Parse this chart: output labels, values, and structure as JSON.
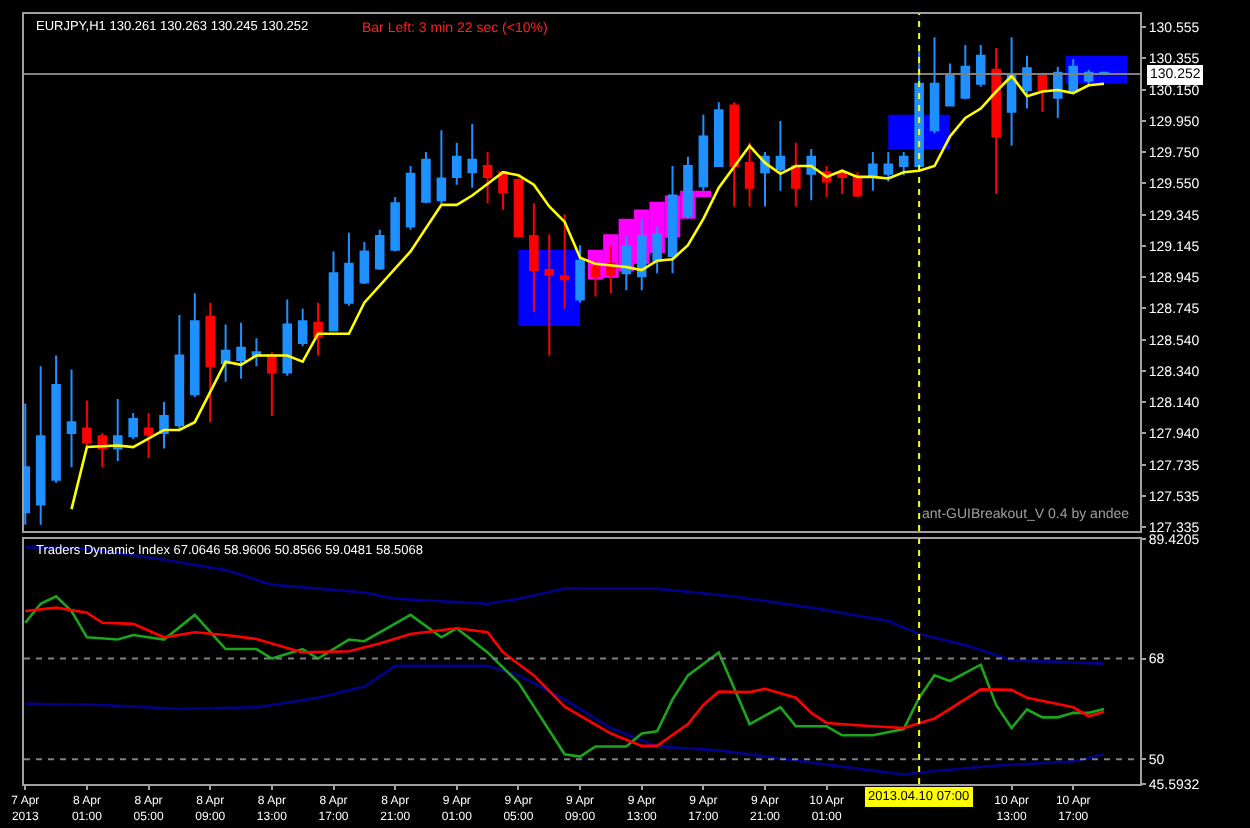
{
  "chart_data": [
    {
      "type": "candlestick",
      "title": "EURJPY,H1 130.261 130.263 130.245 130.252",
      "annotations": [
        "Bar Left: 3 min 22 sec (<10%)",
        "ant-GUIBreakout_V 0.4 by andee"
      ],
      "x": [
        "2013-04-07T21:00",
        "2013-04-07T22:00",
        "2013-04-07T23:00",
        "2013-04-08T00:00",
        "2013-04-08T01:00",
        "2013-04-08T02:00",
        "2013-04-08T03:00",
        "2013-04-08T04:00",
        "2013-04-08T05:00",
        "2013-04-08T06:00",
        "2013-04-08T07:00",
        "2013-04-08T08:00",
        "2013-04-08T09:00",
        "2013-04-08T10:00",
        "2013-04-08T11:00",
        "2013-04-08T12:00",
        "2013-04-08T13:00",
        "2013-04-08T14:00",
        "2013-04-08T15:00",
        "2013-04-08T16:00",
        "2013-04-08T17:00",
        "2013-04-08T18:00",
        "2013-04-08T19:00",
        "2013-04-08T20:00",
        "2013-04-08T21:00",
        "2013-04-08T22:00",
        "2013-04-08T23:00",
        "2013-04-09T00:00",
        "2013-04-09T01:00",
        "2013-04-09T02:00",
        "2013-04-09T03:00",
        "2013-04-09T04:00",
        "2013-04-09T05:00",
        "2013-04-09T06:00",
        "2013-04-09T07:00",
        "2013-04-09T08:00",
        "2013-04-09T09:00",
        "2013-04-09T10:00",
        "2013-04-09T11:00",
        "2013-04-09T12:00",
        "2013-04-09T13:00",
        "2013-04-09T14:00",
        "2013-04-09T15:00",
        "2013-04-09T16:00",
        "2013-04-09T17:00",
        "2013-04-09T18:00",
        "2013-04-09T19:00",
        "2013-04-09T20:00",
        "2013-04-09T21:00",
        "2013-04-09T22:00",
        "2013-04-09T23:00",
        "2013-04-10T00:00",
        "2013-04-10T01:00",
        "2013-04-10T02:00",
        "2013-04-10T03:00",
        "2013-04-10T04:00",
        "2013-04-10T05:00",
        "2013-04-10T06:00",
        "2013-04-10T07:00",
        "2013-04-10T08:00",
        "2013-04-10T09:00",
        "2013-04-10T10:00",
        "2013-04-10T11:00",
        "2013-04-10T12:00",
        "2013-04-10T13:00",
        "2013-04-10T14:00",
        "2013-04-10T15:00",
        "2013-04-10T16:00",
        "2013-04-10T17:00",
        "2013-04-10T18:00",
        "2013-04-10T19:00"
      ],
      "ohlc": [
        [
          127.43,
          128.13,
          127.35,
          127.72
        ],
        [
          127.48,
          128.37,
          127.35,
          127.92
        ],
        [
          127.64,
          128.44,
          127.62,
          128.25
        ],
        [
          127.94,
          128.35,
          127.72,
          128.01
        ],
        [
          127.97,
          128.15,
          127.84,
          127.88
        ],
        [
          127.92,
          127.94,
          127.72,
          127.84
        ],
        [
          127.84,
          128.16,
          127.76,
          127.92
        ],
        [
          127.92,
          128.07,
          127.9,
          128.03
        ],
        [
          127.97,
          128.07,
          127.78,
          127.93
        ],
        [
          127.94,
          128.14,
          127.84,
          128.05
        ],
        [
          127.99,
          128.7,
          127.97,
          128.44
        ],
        [
          128.19,
          128.84,
          128.17,
          128.66
        ],
        [
          128.69,
          128.78,
          128.01,
          128.37
        ],
        [
          128.39,
          128.64,
          128.27,
          128.47
        ],
        [
          128.41,
          128.65,
          128.29,
          128.49
        ],
        [
          128.44,
          128.55,
          128.37,
          128.46
        ],
        [
          128.44,
          128.46,
          128.05,
          128.33
        ],
        [
          128.33,
          128.8,
          128.31,
          128.64
        ],
        [
          128.52,
          128.74,
          128.5,
          128.66
        ],
        [
          128.65,
          128.78,
          128.44,
          128.56
        ],
        [
          128.6,
          129.11,
          128.6,
          128.97
        ],
        [
          128.78,
          129.23,
          128.76,
          129.03
        ],
        [
          128.91,
          129.17,
          128.9,
          129.11
        ],
        [
          129.0,
          129.25,
          128.99,
          129.21
        ],
        [
          129.12,
          129.46,
          129.11,
          129.42
        ],
        [
          129.27,
          129.66,
          129.25,
          129.61
        ],
        [
          129.43,
          129.75,
          129.42,
          129.7
        ],
        [
          129.44,
          129.89,
          129.42,
          129.58
        ],
        [
          129.59,
          129.81,
          129.54,
          129.72
        ],
        [
          129.62,
          129.93,
          129.52,
          129.7
        ],
        [
          129.66,
          129.75,
          129.42,
          129.59
        ],
        [
          129.62,
          129.62,
          129.38,
          129.49
        ],
        [
          129.57,
          129.58,
          129.21,
          129.21
        ],
        [
          129.21,
          129.42,
          128.72,
          128.99
        ],
        [
          128.99,
          129.22,
          128.44,
          128.96
        ],
        [
          128.95,
          129.35,
          128.74,
          128.93
        ],
        [
          128.8,
          129.15,
          128.78,
          129.05
        ],
        [
          129.01,
          129.05,
          128.82,
          128.95
        ],
        [
          129.03,
          129.15,
          128.84,
          128.96
        ],
        [
          128.97,
          129.21,
          128.86,
          129.14
        ],
        [
          128.95,
          129.32,
          128.86,
          129.21
        ],
        [
          129.05,
          129.27,
          128.97,
          129.22
        ],
        [
          129.08,
          129.66,
          128.97,
          129.47
        ],
        [
          129.34,
          129.72,
          129.32,
          129.66
        ],
        [
          129.53,
          129.99,
          129.5,
          129.85
        ],
        [
          129.66,
          130.07,
          129.66,
          130.02
        ],
        [
          130.05,
          130.07,
          129.4,
          129.66
        ],
        [
          129.68,
          129.81,
          129.4,
          129.52
        ],
        [
          129.62,
          129.75,
          129.4,
          129.72
        ],
        [
          129.64,
          129.95,
          129.5,
          129.72
        ],
        [
          129.66,
          129.81,
          129.4,
          129.52
        ],
        [
          129.61,
          129.77,
          129.44,
          129.72
        ],
        [
          129.62,
          129.66,
          129.46,
          129.56
        ],
        [
          129.62,
          129.64,
          129.48,
          129.59
        ],
        [
          129.59,
          129.62,
          129.46,
          129.47
        ],
        [
          129.59,
          129.75,
          129.5,
          129.67
        ],
        [
          129.61,
          129.75,
          129.56,
          129.67
        ],
        [
          129.66,
          129.75,
          129.6,
          129.72
        ],
        [
          129.66,
          130.41,
          129.64,
          130.19
        ],
        [
          129.89,
          130.49,
          129.87,
          130.19
        ],
        [
          130.05,
          130.32,
          130.05,
          130.25
        ],
        [
          130.1,
          130.44,
          130.09,
          130.3
        ],
        [
          130.19,
          130.44,
          130.17,
          130.37
        ],
        [
          130.28,
          130.42,
          129.48,
          129.85
        ],
        [
          130.01,
          130.49,
          129.79,
          130.25
        ],
        [
          130.15,
          130.37,
          130.03,
          130.29
        ],
        [
          130.24,
          130.26,
          130.01,
          130.15
        ],
        [
          130.1,
          130.3,
          129.97,
          130.26
        ],
        [
          130.15,
          130.35,
          130.13,
          130.3
        ],
        [
          130.21,
          130.28,
          130.17,
          130.26
        ],
        [
          130.261,
          130.263,
          130.245,
          130.252
        ]
      ],
      "colors": [
        "#1e90ff",
        "#1e90ff",
        "#1e90ff",
        "#1e90ff",
        "#ff0000",
        "#ff0000",
        "#1e90ff",
        "#1e90ff",
        "#ff0000",
        "#1e90ff",
        "#1e90ff",
        "#1e90ff",
        "#ff0000",
        "#1e90ff",
        "#1e90ff",
        "#1e90ff",
        "#ff0000",
        "#1e90ff",
        "#1e90ff",
        "#ff0000",
        "#1e90ff",
        "#1e90ff",
        "#1e90ff",
        "#1e90ff",
        "#1e90ff",
        "#1e90ff",
        "#1e90ff",
        "#1e90ff",
        "#1e90ff",
        "#1e90ff",
        "#ff0000",
        "#ff0000",
        "#ff0000",
        "#ff0000",
        "#ff0000",
        "#ff0000",
        "#1e90ff",
        "#ff0000",
        "#ff0000",
        "#1e90ff",
        "#1e90ff",
        "#1e90ff",
        "#1e90ff",
        "#1e90ff",
        "#1e90ff",
        "#1e90ff",
        "#ff0000",
        "#ff0000",
        "#1e90ff",
        "#1e90ff",
        "#ff0000",
        "#1e90ff",
        "#ff0000",
        "#ff0000",
        "#ff0000",
        "#1e90ff",
        "#1e90ff",
        "#1e90ff",
        "#1e90ff",
        "#1e90ff",
        "#1e90ff",
        "#1e90ff",
        "#1e90ff",
        "#ff0000",
        "#1e90ff",
        "#1e90ff",
        "#ff0000",
        "#1e90ff",
        "#1e90ff",
        "#1e90ff",
        "#1e90ff"
      ],
      "series": [
        {
          "type": "bar",
          "color": "#0000ff",
          "x": [
            "2013-04-09T07:00",
            "2013-04-10T07:00",
            "2013-04-10T18:30"
          ],
          "base": [
            128.63,
            129.77,
            130.19
          ],
          "values": [
            0.49,
            0.22,
            0.18
          ]
        },
        {
          "type": "bar",
          "color": "#ff00ff",
          "x": [
            "2013-04-09T10:00",
            "2013-04-09T11:00",
            "2013-04-09T12:00",
            "2013-04-09T13:00",
            "2013-04-09T14:00",
            "2013-04-09T15:00",
            "2013-04-09T16:00",
            "2013-04-09T17:00"
          ],
          "base": [
            128.93,
            128.94,
            128.98,
            129.03,
            129.1,
            129.2,
            129.32,
            129.46
          ],
          "values": [
            0.19,
            0.28,
            0.34,
            0.35,
            0.33,
            0.27,
            0.18,
            0.04
          ]
        },
        {
          "type": "line",
          "color": "#ffff00",
          "x": [
            "2013-04-08T00:00",
            "2013-04-08T01:00",
            "2013-04-08T03:00",
            "2013-04-08T04:00",
            "2013-04-08T06:00",
            "2013-04-08T07:00",
            "2013-04-08T08:00",
            "2013-04-08T10:00",
            "2013-04-08T11:00",
            "2013-04-08T12:00",
            "2013-04-08T14:00",
            "2013-04-08T15:00",
            "2013-04-08T16:00",
            "2013-04-08T18:00",
            "2013-04-08T19:00",
            "2013-04-08T22:00",
            "2013-04-09T00:00",
            "2013-04-09T01:00",
            "2013-04-09T02:00",
            "2013-04-09T04:00",
            "2013-04-09T05:00",
            "2013-04-09T06:00",
            "2013-04-09T07:00",
            "2013-04-09T08:00",
            "2013-04-09T09:00",
            "2013-04-09T10:00",
            "2013-04-09T12:00",
            "2013-04-09T13:00",
            "2013-04-09T14:00",
            "2013-04-09T15:00",
            "2013-04-09T16:00",
            "2013-04-09T17:00",
            "2013-04-09T18:00",
            "2013-04-09T20:00",
            "2013-04-09T21:00",
            "2013-04-09T22:00",
            "2013-04-09T23:00",
            "2013-04-10T00:00",
            "2013-04-10T01:00",
            "2013-04-10T02:00",
            "2013-04-10T03:00",
            "2013-04-10T04:00",
            "2013-04-10T05:00",
            "2013-04-10T06:00",
            "2013-04-10T07:00",
            "2013-04-10T08:00",
            "2013-04-10T09:00",
            "2013-04-10T10:00",
            "2013-04-10T11:00",
            "2013-04-10T12:00",
            "2013-04-10T13:00",
            "2013-04-10T14:00",
            "2013-04-10T15:00",
            "2013-04-10T16:00",
            "2013-04-10T17:00",
            "2013-04-10T18:00",
            "2013-04-10T19:00"
          ],
          "values": [
            127.45,
            127.85,
            127.86,
            127.85,
            127.96,
            127.96,
            128.01,
            128.4,
            128.38,
            128.44,
            128.44,
            128.4,
            128.58,
            128.58,
            128.78,
            129.11,
            129.41,
            129.41,
            129.47,
            129.62,
            129.6,
            129.54,
            129.4,
            129.3,
            129.07,
            129.03,
            129.01,
            128.99,
            129.05,
            129.06,
            129.15,
            129.32,
            129.52,
            129.79,
            129.68,
            129.61,
            129.66,
            129.66,
            129.59,
            129.63,
            129.59,
            129.59,
            129.58,
            129.62,
            129.63,
            129.66,
            129.85,
            129.97,
            130.03,
            130.14,
            130.24,
            130.11,
            130.14,
            130.15,
            130.13,
            130.18,
            130.19
          ]
        }
      ],
      "xlim": [
        "2013-04-07T20:55",
        "2013-04-10T21:20"
      ],
      "ylim": [
        127.31,
        130.64
      ],
      "yticks": [
        130.555,
        130.355,
        {
          "value": 130.15,
          "label": "130.150"
        },
        {
          "value": 129.95,
          "label": "129.950"
        },
        {
          "value": 129.75,
          "label": "129.750"
        },
        {
          "value": 129.55,
          "label": "129.550"
        },
        129.345,
        129.145,
        128.945,
        128.745,
        {
          "value": 128.54,
          "label": "128.540"
        },
        {
          "value": 128.34,
          "label": "128.340"
        },
        {
          "value": 128.14,
          "label": "128.140"
        },
        {
          "value": 127.94,
          "label": "127.940"
        },
        127.735,
        127.535,
        127.335
      ],
      "ref_lines": [
        {
          "axis": "y",
          "value": 130.252,
          "label": "130.252",
          "color": "#808080"
        },
        {
          "axis": "x",
          "value": "2013-04-10T07:00",
          "color": "#ffff00",
          "line_style": "dotted"
        }
      ],
      "tick_labels": "y"
    },
    {
      "type": "line",
      "title": "Traders Dynamic Index 67.0646 58.9606 50.8566 59.0481 58.5068",
      "series": [
        {
          "color": "#00008b",
          "x": [
            "2013-04-07T21:00",
            "2013-04-08T01:00",
            "2013-04-08T04:00",
            "2013-04-08T07:00",
            "2013-04-08T10:00",
            "2013-04-08T13:00",
            "2013-04-08T19:00",
            "2013-04-08T21:00",
            "2013-04-09T03:00",
            "2013-04-09T05:00",
            "2013-04-09T08:00",
            "2013-04-09T14:00",
            "2013-04-09T19:00",
            "2013-04-10T00:00",
            "2013-04-10T05:00",
            "2013-04-10T07:00",
            "2013-04-10T10:00",
            "2013-04-10T13:00",
            "2013-04-10T19:00"
          ],
          "values": [
            87.9,
            87.6,
            86.5,
            85.2,
            83.8,
            81.2,
            79.8,
            78.7,
            77.8,
            78.7,
            80.5,
            80.5,
            79.1,
            77.1,
            74.7,
            72.4,
            70.4,
            67.7,
            67.1
          ]
        },
        {
          "color": "#00008b",
          "x": [
            "2013-04-07T21:00",
            "2013-04-08T02:00",
            "2013-04-08T07:00",
            "2013-04-08T12:00",
            "2013-04-08T16:00",
            "2013-04-08T19:00",
            "2013-04-08T21:00",
            "2013-04-09T03:00",
            "2013-04-09T05:00",
            "2013-04-09T08:00",
            "2013-04-09T11:00",
            "2013-04-09T14:00",
            "2013-04-09T18:00",
            "2013-04-09T21:00",
            "2013-04-10T02:00",
            "2013-04-10T06:00",
            "2013-04-10T08:00",
            "2013-04-10T12:00",
            "2013-04-10T17:00",
            "2013-04-10T19:00"
          ],
          "values": [
            59.9,
            59.7,
            59.0,
            59.3,
            61.0,
            63.0,
            66.7,
            66.7,
            65.0,
            60.7,
            55.6,
            52.3,
            51.6,
            50.5,
            48.7,
            47.3,
            47.9,
            48.9,
            49.6,
            50.9
          ]
        },
        {
          "color": "#1aa51a",
          "x": [
            "2013-04-07T21:00",
            "2013-04-07T22:00",
            "2013-04-07T23:00",
            "2013-04-08T00:00",
            "2013-04-08T01:00",
            "2013-04-08T03:00",
            "2013-04-08T04:00",
            "2013-04-08T06:00",
            "2013-04-08T08:00",
            "2013-04-08T10:00",
            "2013-04-08T12:00",
            "2013-04-08T13:00",
            "2013-04-08T15:00",
            "2013-04-08T16:00",
            "2013-04-08T18:00",
            "2013-04-08T19:00",
            "2013-04-08T22:00",
            "2013-04-09T00:00",
            "2013-04-09T01:00",
            "2013-04-09T03:00",
            "2013-04-09T05:00",
            "2013-04-09T08:00",
            "2013-04-09T09:00",
            "2013-04-09T10:00",
            "2013-04-09T12:00",
            "2013-04-09T13:00",
            "2013-04-09T14:00",
            "2013-04-09T15:00",
            "2013-04-09T16:00",
            "2013-04-09T18:00",
            "2013-04-09T20:00",
            "2013-04-09T22:00",
            "2013-04-09T23:00",
            "2013-04-10T01:00",
            "2013-04-10T02:00",
            "2013-04-10T04:00",
            "2013-04-10T06:00",
            "2013-04-10T07:00",
            "2013-04-10T08:00",
            "2013-04-10T09:00",
            "2013-04-10T11:00",
            "2013-04-10T12:00",
            "2013-04-10T13:00",
            "2013-04-10T14:00",
            "2013-04-10T15:00",
            "2013-04-10T16:00",
            "2013-04-10T17:00",
            "2013-04-10T18:00",
            "2013-04-10T19:00"
          ],
          "values": [
            74.4,
            77.8,
            79.1,
            76.5,
            71.8,
            71.4,
            72.2,
            71.4,
            75.8,
            69.7,
            69.7,
            68.0,
            69.7,
            68.0,
            71.4,
            71.1,
            75.8,
            71.8,
            73.4,
            69.1,
            63.7,
            50.9,
            50.5,
            52.3,
            52.3,
            54.6,
            55.0,
            60.7,
            65.0,
            69.1,
            56.3,
            59.3,
            55.9,
            55.9,
            54.3,
            54.3,
            55.4,
            61.0,
            65.0,
            64.0,
            66.9,
            59.7,
            55.6,
            58.9,
            57.5,
            57.5,
            58.3,
            58.3,
            59.0
          ]
        },
        {
          "color": "#ff0000",
          "x": [
            "2013-04-07T21:00",
            "2013-04-07T23:00",
            "2013-04-08T01:00",
            "2013-04-08T02:00",
            "2013-04-08T04:00",
            "2013-04-08T06:00",
            "2013-04-08T08:00",
            "2013-04-08T10:00",
            "2013-04-08T12:00",
            "2013-04-08T15:00",
            "2013-04-08T18:00",
            "2013-04-08T20:00",
            "2013-04-08T22:00",
            "2013-04-09T01:00",
            "2013-04-09T03:00",
            "2013-04-09T04:00",
            "2013-04-09T06:00",
            "2013-04-09T08:00",
            "2013-04-09T11:00",
            "2013-04-09T13:00",
            "2013-04-09T14:00",
            "2013-04-09T16:00",
            "2013-04-09T17:00",
            "2013-04-09T18:00",
            "2013-04-09T20:00",
            "2013-04-09T21:00",
            "2013-04-09T23:00",
            "2013-04-10T00:00",
            "2013-04-10T01:00",
            "2013-04-10T04:00",
            "2013-04-10T06:00",
            "2013-04-10T08:00",
            "2013-04-10T09:00",
            "2013-04-10T11:00",
            "2013-04-10T13:00",
            "2013-04-10T14:00",
            "2013-04-10T16:00",
            "2013-04-10T17:00",
            "2013-04-10T18:00",
            "2013-04-10T19:00"
          ],
          "values": [
            76.5,
            77.1,
            76.2,
            74.4,
            74.2,
            71.8,
            72.7,
            72.2,
            71.5,
            69.1,
            69.3,
            70.7,
            72.4,
            73.4,
            72.7,
            69.1,
            65.0,
            59.4,
            54.6,
            52.4,
            52.4,
            56.3,
            59.7,
            62.1,
            62.0,
            62.6,
            61.0,
            58.3,
            56.5,
            55.9,
            55.6,
            57.3,
            59.0,
            62.5,
            62.4,
            61.0,
            59.9,
            59.3,
            57.7,
            58.5
          ]
        }
      ],
      "xlim": [
        "2013-04-07T20:55",
        "2013-04-10T21:20"
      ],
      "ylim": [
        45.5932,
        89.4205
      ],
      "yticks": [
        89.4205,
        68,
        50,
        45.5932
      ],
      "xticks": [
        {
          "value": "2013-04-07T21:00",
          "label": "7 Apr 2013"
        },
        {
          "value": "2013-04-08T01:00",
          "label": "8 Apr 01:00"
        },
        {
          "value": "2013-04-08T05:00",
          "label": "8 Apr 05:00"
        },
        {
          "value": "2013-04-08T09:00",
          "label": "8 Apr 09:00"
        },
        {
          "value": "2013-04-08T13:00",
          "label": "8 Apr 13:00"
        },
        {
          "value": "2013-04-08T17:00",
          "label": "8 Apr 17:00"
        },
        {
          "value": "2013-04-08T21:00",
          "label": "8 Apr 21:00"
        },
        {
          "value": "2013-04-09T01:00",
          "label": "9 Apr 01:00"
        },
        {
          "value": "2013-04-09T05:00",
          "label": "9 Apr 05:00"
        },
        {
          "value": "2013-04-09T09:00",
          "label": "9 Apr 09:00"
        },
        {
          "value": "2013-04-09T13:00",
          "label": "9 Apr 13:00"
        },
        {
          "value": "2013-04-09T17:00",
          "label": "9 Apr 17:00"
        },
        {
          "value": "2013-04-09T21:00",
          "label": "9 Apr 21:00"
        },
        {
          "value": "2013-04-10T01:00",
          "label": "10 Apr 01:00"
        },
        {
          "value": "2013-04-10T13:00",
          "label": "10 Apr 13:00"
        },
        {
          "value": "2013-04-10T17:00",
          "label": "10 Apr 17:00"
        }
      ],
      "ref_lines": [
        {
          "axis": "y",
          "value": 68,
          "color": "#808080",
          "line_style": "dotted"
        },
        {
          "axis": "y",
          "value": 50,
          "color": "#808080",
          "line_style": "dotted"
        },
        {
          "axis": "x",
          "value": "2013-04-10T07:00",
          "label": "2013.04.10 07:00",
          "color": "#ffff00",
          "line_style": "dotted"
        }
      ]
    }
  ]
}
